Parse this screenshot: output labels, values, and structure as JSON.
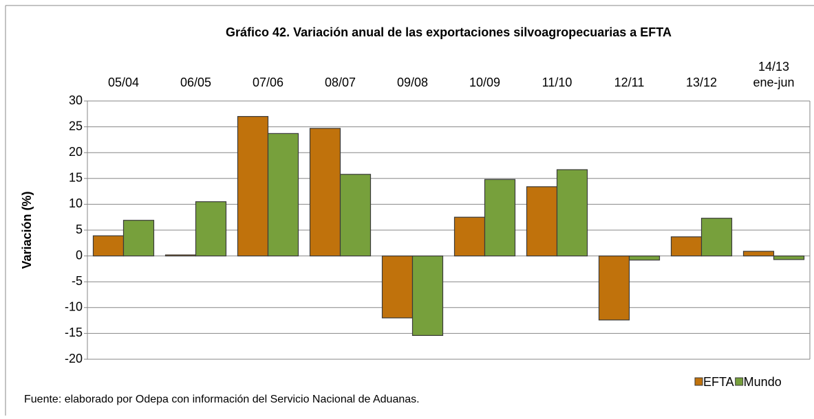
{
  "chart_data": {
    "type": "bar",
    "title": "Gráfico 42. Variación anual de las exportaciones silvoagropecuarias a EFTA",
    "y_label": "Variación (%)",
    "source": "Fuente: elaborado por Odepa con información del Servicio Nacional de Aduanas.",
    "categories": [
      "05/04",
      "06/05",
      "07/06",
      "08/07",
      "09/08",
      "10/09",
      "11/10",
      "12/11",
      "13/12",
      "14/13\nene-jun"
    ],
    "series": [
      {
        "name": "EFTA",
        "color": "#c0720c",
        "values": [
          3.9,
          0.2,
          27.0,
          24.7,
          -12.0,
          7.5,
          13.4,
          -12.4,
          3.7,
          0.9
        ]
      },
      {
        "name": "Mundo",
        "color": "#77a03c",
        "values": [
          6.9,
          10.5,
          23.7,
          15.8,
          -15.4,
          14.8,
          16.7,
          -0.8,
          7.3,
          -0.7
        ]
      }
    ],
    "ylim": [
      -20,
      30
    ],
    "yticks": [
      -20,
      -15,
      -10,
      -5,
      0,
      5,
      10,
      15,
      20,
      25,
      30
    ],
    "grid": true,
    "legend": "bottom-right"
  }
}
